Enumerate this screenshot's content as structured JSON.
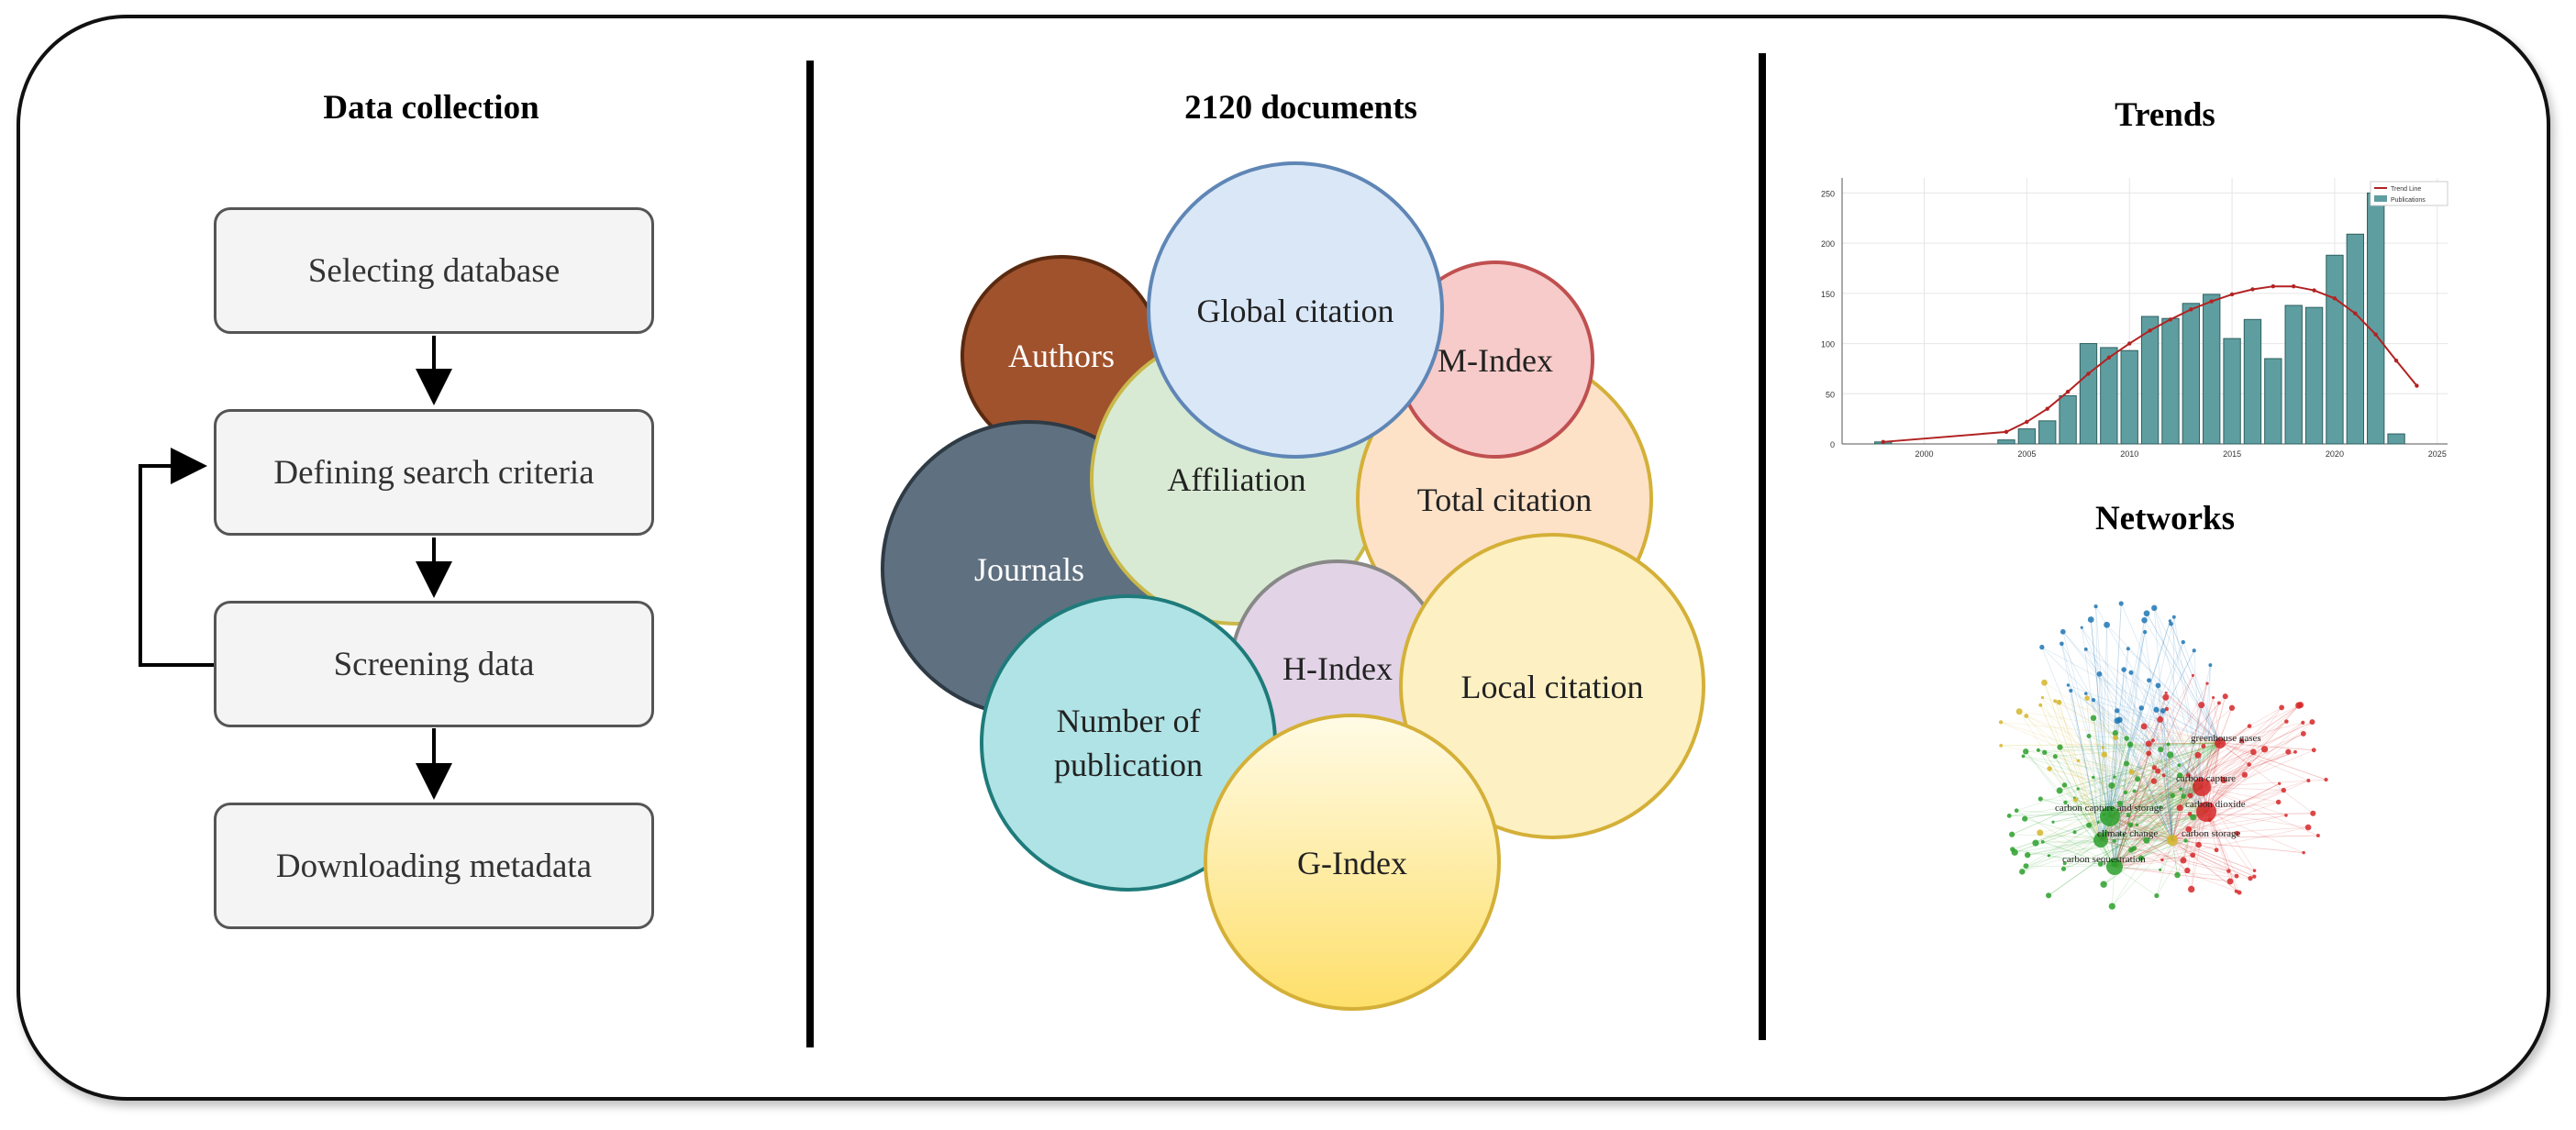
{
  "data_collection": {
    "title": "Data collection",
    "steps": [
      {
        "label": "Selecting database"
      },
      {
        "label": "Defining search criteria"
      },
      {
        "label": "Screening data"
      },
      {
        "label": "Downloading metadata"
      }
    ]
  },
  "analysis": {
    "title": "2120 documents",
    "circles": {
      "authors": "Authors",
      "journals": "Journals",
      "affiliation": "Affiliation",
      "global_citation": "Global citation",
      "m_index": "M-Index",
      "total_citation": "Total citation",
      "h_index": "H-Index",
      "local_citation": "Local citation",
      "number_of_publication_line1": "Number of",
      "number_of_publication_line2": "publication",
      "g_index": "G-Index"
    },
    "colors": {
      "authors": "#a0522d",
      "journals": "#5f7080",
      "affiliation": "#d8ead3",
      "global_citation": "#d9e7f7",
      "m_index": "#f6cbc9",
      "total_citation": "#fde2c8",
      "h_index": "#e2d4e6",
      "local_citation": "#fdf0c2",
      "number_of_publication": "#b0e3e5",
      "g_index": "#fde48a"
    }
  },
  "trends": {
    "title": "Trends",
    "chart_data": {
      "type": "bar",
      "title": "",
      "xlabel": "",
      "ylabel": "",
      "x": [
        1998,
        2004,
        2005,
        2006,
        2007,
        2008,
        2009,
        2010,
        2011,
        2012,
        2013,
        2014,
        2015,
        2016,
        2017,
        2018,
        2019,
        2020,
        2021,
        2022,
        2023
      ],
      "series": [
        {
          "name": "Publications",
          "values": [
            2,
            4,
            15,
            23,
            48,
            100,
            96,
            93,
            127,
            125,
            140,
            149,
            105,
            124,
            85,
            138,
            136,
            188,
            209,
            250,
            10
          ],
          "color": "#5f9ea0"
        },
        {
          "name": "Trend Line",
          "x": [
            1998,
            2004,
            2005,
            2006,
            2007,
            2008,
            2009,
            2010,
            2011,
            2012,
            2013,
            2014,
            2015,
            2016,
            2017,
            2018,
            2019,
            2020,
            2021,
            2022,
            2023,
            2024
          ],
          "values": [
            2,
            12,
            22,
            35,
            52,
            70,
            86,
            100,
            113,
            124,
            134,
            142,
            149,
            154,
            157,
            157,
            153,
            145,
            130,
            109,
            83,
            58
          ],
          "color": "#b22222"
        }
      ],
      "xticks": [
        "2000",
        "2005",
        "2010",
        "2015",
        "2020",
        "2025"
      ],
      "yticks": [
        "0",
        "50",
        "100",
        "150",
        "200",
        "250"
      ],
      "xlim": [
        1996,
        2025.5
      ],
      "ylim": [
        0,
        265
      ],
      "grid": true,
      "legend_position": "top-right"
    }
  },
  "networks": {
    "title": "Networks",
    "labels": {
      "carbon_capture": "carbon capture",
      "carbon_dioxide": "carbon dioxide",
      "carbon_capture_and_storage": "carbon capture and storage",
      "climate_change": "climate change",
      "carbon_sequestration": "carbon sequestration",
      "greenhouse_gases": "greenhouse gases",
      "carbon_storage": "carbon storage"
    },
    "colors": {
      "red": "#d62728",
      "green": "#2ca02c",
      "blue": "#1f77b4",
      "yellow": "#d4b62a"
    }
  }
}
